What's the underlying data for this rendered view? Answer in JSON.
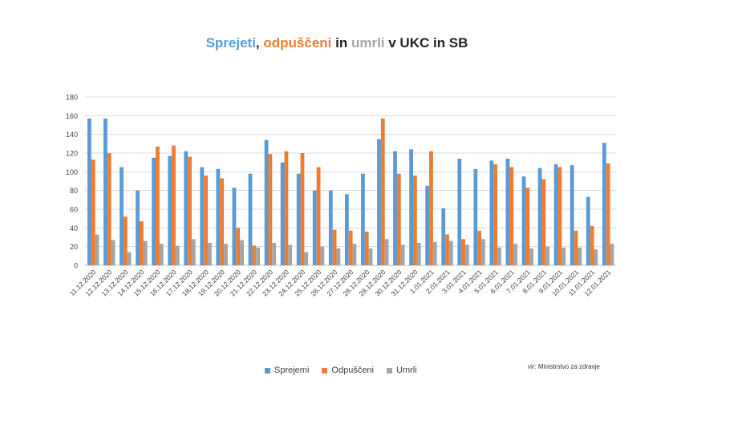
{
  "title": {
    "part1": "Sprejeti",
    "sep1": ", ",
    "part2": "odpuščeni",
    "sep2": " in ",
    "part3": "umrli",
    "part4": " v UKC in SB"
  },
  "colors": {
    "sprejemi": "#5b9bd5",
    "odpusceni": "#ed7d31",
    "umrli": "#a5a5a5",
    "grid": "#d9d9d9",
    "axis_text": "#404040"
  },
  "source": "vir: Ministrstvo za zdravje",
  "chart_data": {
    "type": "bar",
    "title": "Sprejeti, odpuščeni in umrli v UKC in SB",
    "ylim": [
      0,
      180
    ],
    "yticks": [
      0,
      20,
      40,
      60,
      80,
      100,
      120,
      140,
      160,
      180
    ],
    "grid": true,
    "legend": "bottom",
    "categories": [
      "11.12.2020",
      "12.12.2020",
      "13.12.2020",
      "14.12.2020",
      "15.12.2020",
      "16.12.2020",
      "17.12.2020",
      "18.12.2020",
      "19.12.2020",
      "20.12.2020",
      "21.12.2020",
      "22.12.2020",
      "23.12.2020",
      "24.12.2020",
      "25.12.2020",
      "26.12.2020",
      "27.12.2020",
      "28.12.2020",
      "29.12.2020",
      "30.12.2020",
      "31.12.2020",
      "1.01.2021",
      "2.01.2021",
      "3.01.2021",
      "4.01.2021",
      "5.01.2021",
      "6.01.2021",
      "7.01.2021",
      "8.01.2021",
      "9.01.2021",
      "10.01.2021",
      "11.01.2021",
      "12.01.2021"
    ],
    "series": [
      {
        "name": "Sprejemi",
        "values": [
          157,
          157,
          105,
          80,
          115,
          117,
          122,
          105,
          103,
          83,
          98,
          134,
          110,
          98,
          80,
          80,
          76,
          98,
          135,
          122,
          124,
          85,
          61,
          114,
          103,
          112,
          114,
          95,
          104,
          108,
          107,
          73,
          131
        ]
      },
      {
        "name": "Odpuščeni",
        "values": [
          113,
          120,
          52,
          47,
          127,
          128,
          116,
          96,
          93,
          40,
          21,
          119,
          122,
          120,
          105,
          38,
          37,
          36,
          157,
          98,
          96,
          122,
          33,
          28,
          37,
          108,
          105,
          83,
          92,
          105,
          37,
          42,
          109
        ]
      },
      {
        "name": "Umrli",
        "values": [
          33,
          27,
          14,
          26,
          23,
          21,
          28,
          24,
          23,
          27,
          19,
          24,
          22,
          14,
          20,
          18,
          23,
          18,
          28,
          22,
          24,
          25,
          26,
          22,
          28,
          19,
          23,
          18,
          20,
          19,
          19,
          17,
          23
        ]
      }
    ]
  }
}
